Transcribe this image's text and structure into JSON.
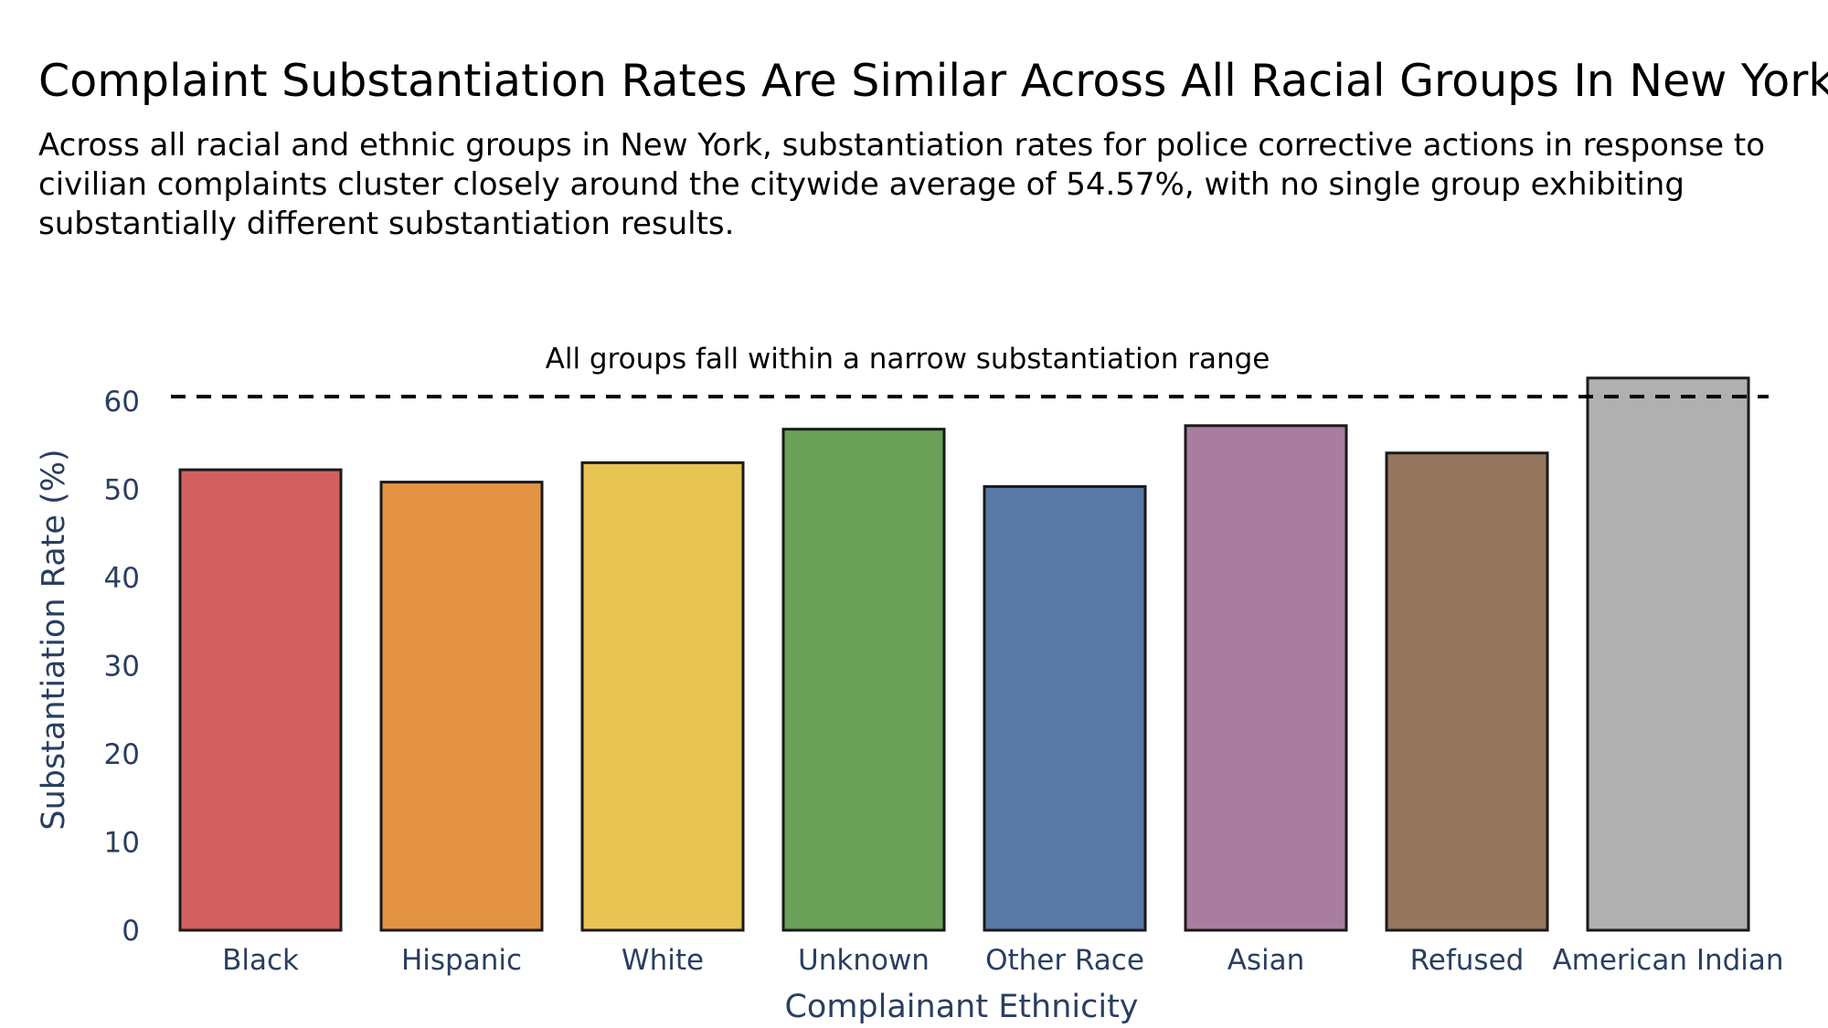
{
  "chart_data": {
    "type": "bar",
    "title": "Complaint Substantiation Rates Are Similar Across All Racial Groups In New York",
    "subtitle": "Across all racial and ethnic groups in New York, substantiation rates for police corrective actions in response to civilian complaints cluster closely around the citywide average of 54.57%, with no single group exhibiting substantially different substantiation results.",
    "xlabel": "Complainant Ethnicity",
    "ylabel": "Substantiation Rate (%)",
    "ylim": [
      0,
      63.5
    ],
    "yticks": [
      0,
      10,
      20,
      30,
      40,
      50,
      60
    ],
    "categories": [
      "Black",
      "Hispanic",
      "White",
      "Unknown",
      "Other Race",
      "Asian",
      "Refused",
      "American Indian"
    ],
    "values": [
      52.2,
      50.8,
      53.0,
      56.8,
      50.3,
      57.2,
      54.1,
      62.6
    ],
    "colors": [
      "#d3605f",
      "#e49343",
      "#e8c453",
      "#6aa057",
      "#5878a5",
      "#a97d9f",
      "#97765f",
      "#b0b0b0"
    ],
    "bar_outline_color": "#1a1a1a",
    "reference_line": {
      "value": 60.5,
      "style": "dashed",
      "color": "#000000"
    },
    "annotation": "All groups fall within a narrow substantiation range",
    "grid": false,
    "legend": "none"
  }
}
